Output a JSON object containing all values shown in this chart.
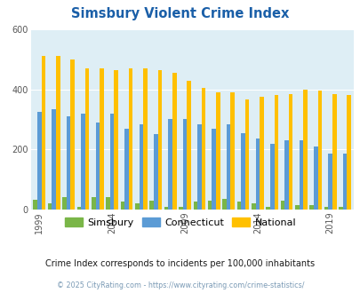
{
  "title": "Simsbury Violent Crime Index",
  "years": [
    1999,
    2000,
    2001,
    2002,
    2003,
    2004,
    2005,
    2006,
    2007,
    2008,
    2009,
    2010,
    2011,
    2012,
    2013,
    2014,
    2015,
    2016,
    2017,
    2018,
    2019,
    2020
  ],
  "simsbury": [
    32,
    20,
    42,
    10,
    40,
    40,
    25,
    20,
    30,
    8,
    10,
    25,
    30,
    35,
    27,
    20,
    10,
    30,
    15,
    15,
    10,
    8
  ],
  "connecticut": [
    325,
    335,
    310,
    320,
    290,
    320,
    270,
    285,
    250,
    300,
    300,
    285,
    270,
    285,
    255,
    235,
    220,
    230,
    230,
    210,
    185,
    185
  ],
  "national": [
    510,
    510,
    500,
    470,
    470,
    465,
    470,
    470,
    465,
    455,
    430,
    405,
    390,
    390,
    365,
    375,
    380,
    385,
    400,
    395,
    385,
    380
  ],
  "bar_color_simsbury": "#7ab648",
  "bar_color_connecticut": "#5b9bd5",
  "bar_color_national": "#ffc000",
  "bg_color": "#deeef5",
  "ylim": [
    0,
    600
  ],
  "yticks": [
    0,
    200,
    400,
    600
  ],
  "subtitle": "Crime Index corresponds to incidents per 100,000 inhabitants",
  "footer": "© 2025 CityRating.com - https://www.cityrating.com/crime-statistics/",
  "legend_labels": [
    "Simsbury",
    "Connecticut",
    "National"
  ],
  "title_color": "#1a5fa8",
  "subtitle_color": "#1a1a1a",
  "footer_color": "#7a9ab5",
  "grid_color": "#ffffff",
  "axis_tick_years": [
    1999,
    2004,
    2009,
    2014,
    2019
  ]
}
